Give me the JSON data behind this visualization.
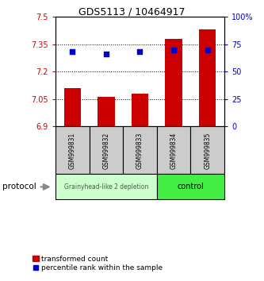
{
  "title": "GDS5113 / 10464917",
  "samples": [
    "GSM999831",
    "GSM999832",
    "GSM999833",
    "GSM999834",
    "GSM999835"
  ],
  "bar_values": [
    7.11,
    7.06,
    7.08,
    7.38,
    7.43
  ],
  "bar_base": 6.9,
  "percentile_values": [
    68,
    66,
    68,
    70,
    70
  ],
  "ylim_left": [
    6.9,
    7.5
  ],
  "ylim_right": [
    0,
    100
  ],
  "yticks_left": [
    6.9,
    7.05,
    7.2,
    7.35,
    7.5
  ],
  "yticks_right": [
    0,
    25,
    50,
    75,
    100
  ],
  "ytick_labels_left": [
    "6.9",
    "7.05",
    "7.2",
    "7.35",
    "7.5"
  ],
  "ytick_labels_right": [
    "0",
    "25",
    "50",
    "75",
    "100%"
  ],
  "bar_color": "#cc0000",
  "dot_color": "#0000cc",
  "group1_label": "Grainyhead-like 2 depletion",
  "group2_label": "control",
  "group1_color": "#ccffcc",
  "group2_color": "#44ee44",
  "group1_indices": [
    0,
    1,
    2
  ],
  "group2_indices": [
    3,
    4
  ],
  "protocol_label": "protocol",
  "legend_bar_label": "transformed count",
  "legend_dot_label": "percentile rank within the sample",
  "background_color": "#ffffff",
  "sample_bg_color": "#cccccc",
  "border_color": "#000000",
  "title_fontsize": 9,
  "tick_fontsize": 7,
  "sample_fontsize": 5.5,
  "legend_fontsize": 6.5
}
